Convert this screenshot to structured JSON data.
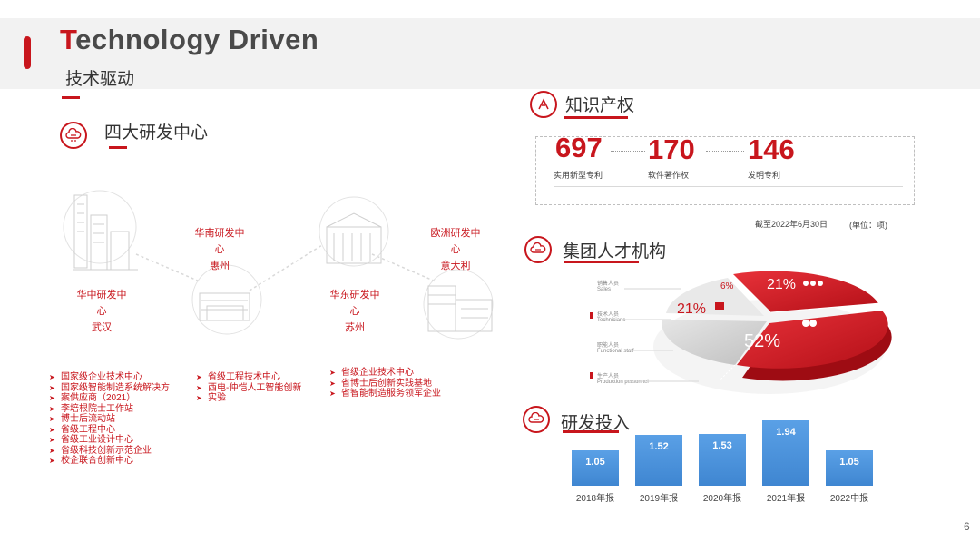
{
  "header": {
    "title_first_letter": "T",
    "title_rest": "echnology Driven",
    "subtitle": "技术驱动"
  },
  "rd": {
    "title": "四大研发中心",
    "centers": [
      {
        "name": "华中研发中心",
        "city": "武汉"
      },
      {
        "name": "华南研发中心",
        "city": "惠州"
      },
      {
        "name": "华东研发中心",
        "city": "苏州"
      },
      {
        "name": "欧洲研发中心",
        "city": "意大利"
      }
    ],
    "bullets_col1": [
      "国家级企业技术中心",
      "国家级智能制造系统解决方",
      "案供应商（2021）",
      "李培根院士工作站",
      "博士后流动站",
      "省级工程中心",
      "省级工业设计中心",
      "省级科技创新示范企业",
      "校企联合创新中心"
    ],
    "bullets_col2": [
      "省级工程技术中心",
      "西电-仲恺人工智能创新",
      "实验"
    ],
    "bullets_col3": [
      "省级企业技术中心",
      "省博士后创新实践基地",
      "省智能制造服务领军企业"
    ]
  },
  "ip": {
    "title": "知识产权",
    "items": [
      {
        "value": "697",
        "label": "实用新型专利"
      },
      {
        "value": "170",
        "label": "软件著作权"
      },
      {
        "value": "146",
        "label": "发明专利"
      }
    ],
    "note_date": "截至2022年6月30日",
    "note_unit": "(单位：项)"
  },
  "talent": {
    "title": "集团人才机构",
    "legend": [
      "Sales",
      "Technicians",
      "Functional staff",
      "Production personnel"
    ],
    "legend_cn": [
      "销售人员",
      "技术人员",
      "职能人员",
      "生产人员"
    ],
    "slices": [
      {
        "label": "52%",
        "value": 52
      },
      {
        "label": "21%",
        "value": 21
      },
      {
        "label": "21%",
        "value": 21
      },
      {
        "label": "6%",
        "value": 6
      }
    ]
  },
  "rdinvest": {
    "title": "研发投入",
    "chart_data": {
      "type": "bar",
      "categories": [
        "2018年报",
        "2019年报",
        "2020年报",
        "2021年报",
        "2022中报"
      ],
      "values": [
        1.05,
        1.52,
        1.53,
        1.94,
        1.05
      ],
      "ylim": [
        0,
        2.2
      ]
    }
  },
  "colors": {
    "accent": "#c8161d",
    "bar": "#4a90d9"
  },
  "page_number": "6"
}
